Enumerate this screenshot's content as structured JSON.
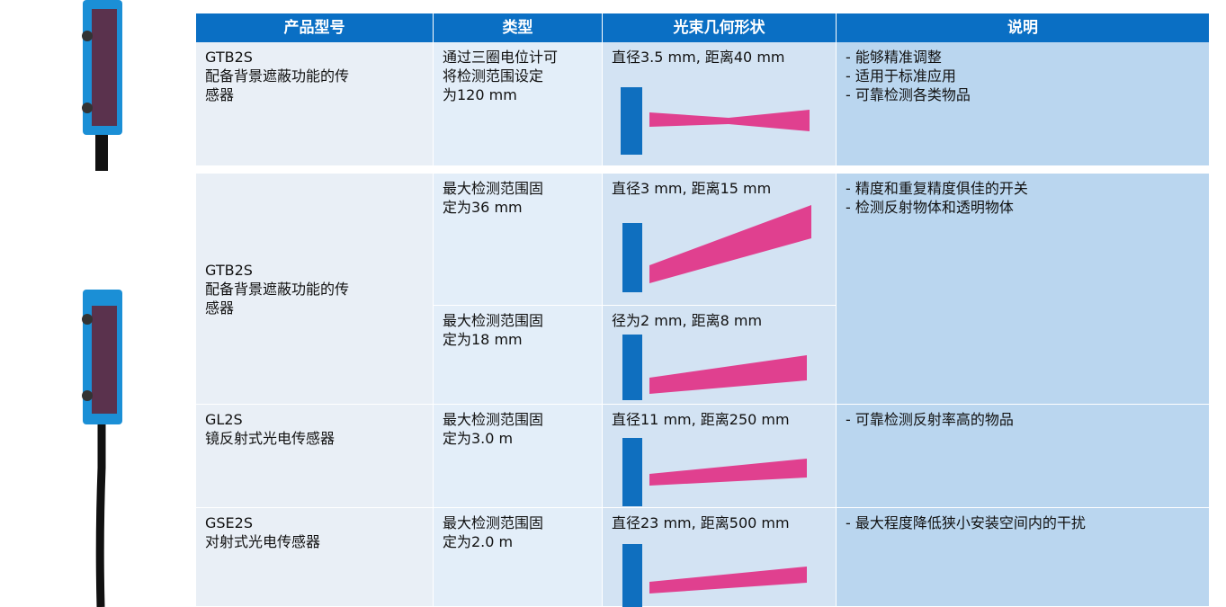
{
  "table": {
    "header": [
      "产品型号",
      "类型",
      "光束几何形状",
      "说明"
    ],
    "rows": [
      {
        "model": [
          "GTB2S",
          "配备背景遮蔽功能的传",
          "感器"
        ],
        "type": [
          "通过三圈电位计可",
          "将检测范围设定",
          "为120 mm"
        ],
        "beam": "直径3.5 mm, 距离40 mm",
        "description": [
          "- 能够精准调整",
          "- 适用于标准应用",
          "- 可靠检测各类物品"
        ]
      },
      {
        "model": [
          "GTB2S",
          "配备背景遮蔽功能的传",
          "感器"
        ],
        "type": [
          "最大检测范围固",
          "定为36 mm"
        ],
        "beam": "直径3 mm, 距离15 mm",
        "description": [
          "- 精度和重复精度俱佳的开关",
          "- 检测反射物体和透明物体"
        ]
      },
      {
        "type": [
          "最大检测范围固",
          "定为18 mm"
        ],
        "beam": "径为2 mm, 距离8 mm"
      },
      {
        "model": [
          "GL2S",
          "镜反射式光电传感器"
        ],
        "type": [
          "最大检测范围固",
          "定为3.0 m"
        ],
        "beam": "直径11 mm, 距离250 mm",
        "description": [
          "- 可靠检测反射率高的物品"
        ]
      },
      {
        "model": [
          "GSE2S",
          "对射式光电传感器"
        ],
        "type": [
          "最大检测范围固",
          "定为2.0 m"
        ],
        "beam": "直径23 mm, 距离500 mm",
        "description": [
          "- 最大程度降低狭小安装空间内的干扰"
        ]
      }
    ]
  }
}
